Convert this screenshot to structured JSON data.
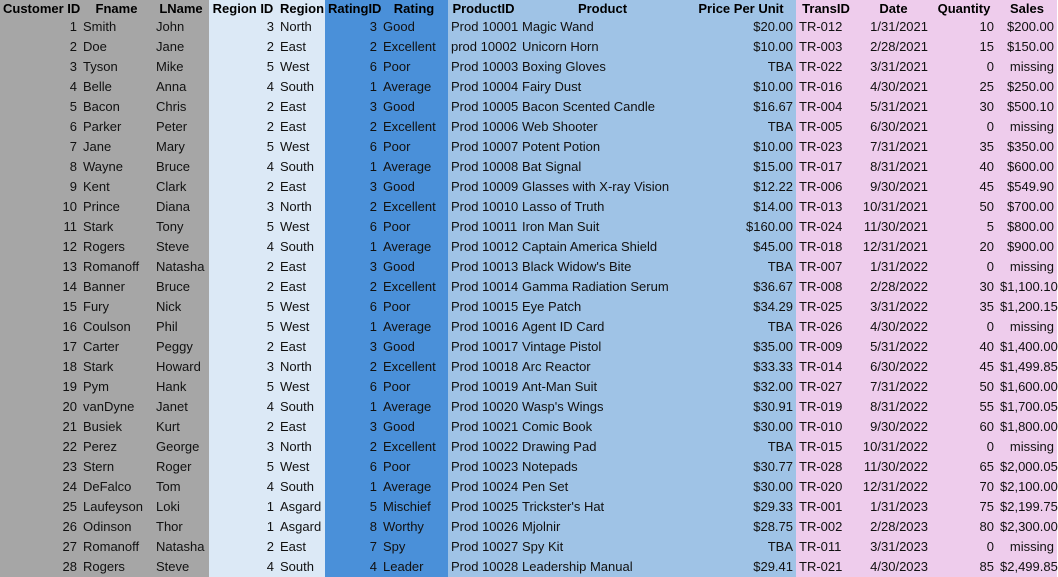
{
  "columns": [
    "Customer ID",
    "Fname",
    "LName",
    "Region ID",
    "Region",
    "RatingID",
    "Rating",
    "ProductID",
    "Product",
    "Price Per Unit",
    "TransID",
    "Date",
    "Quantity",
    "Sales"
  ],
  "rows": [
    [
      "1",
      "Smith",
      "John",
      "3",
      "North",
      "3",
      "Good",
      "Prod 10001",
      "Magic Wand",
      "$20.00",
      "TR-012",
      "1/31/2021",
      "10",
      "$200.00"
    ],
    [
      "2",
      "Doe",
      "Jane",
      "2",
      "East",
      "2",
      "Excellent",
      "prod 10002",
      "Unicorn Horn",
      "$10.00",
      "TR-003",
      "2/28/2021",
      "15",
      "$150.00"
    ],
    [
      "3",
      "Tyson",
      "Mike",
      "5",
      "West",
      "6",
      "Poor",
      "Prod 10003",
      "Boxing Gloves",
      "TBA",
      "TR-022",
      "3/31/2021",
      "0",
      "missing"
    ],
    [
      "4",
      "Belle",
      "Anna",
      "4",
      "South",
      "1",
      "Average",
      "Prod 10004",
      "Fairy Dust",
      "$10.00",
      "TR-016",
      "4/30/2021",
      "25",
      "$250.00"
    ],
    [
      "5",
      "Bacon",
      "Chris",
      "2",
      "East",
      "3",
      "Good",
      "Prod 10005",
      "Bacon Scented Candle",
      "$16.67",
      "TR-004",
      "5/31/2021",
      "30",
      "$500.10"
    ],
    [
      "6",
      "Parker",
      "Peter",
      "2",
      "East",
      "2",
      "Excellent",
      "Prod 10006",
      "Web Shooter",
      "TBA",
      "TR-005",
      "6/30/2021",
      "0",
      "missing"
    ],
    [
      "7",
      "Jane",
      "Mary",
      "5",
      "West",
      "6",
      "Poor",
      "Prod 10007",
      "Potent Potion",
      "$10.00",
      "TR-023",
      "7/31/2021",
      "35",
      "$350.00"
    ],
    [
      "8",
      "Wayne",
      "Bruce",
      "4",
      "South",
      "1",
      "Average",
      "Prod 10008",
      "Bat Signal",
      "$15.00",
      "TR-017",
      "8/31/2021",
      "40",
      "$600.00"
    ],
    [
      "9",
      "Kent",
      "Clark",
      "2",
      "East",
      "3",
      "Good",
      "Prod 10009",
      "Glasses with X-ray Vision",
      "$12.22",
      "TR-006",
      "9/30/2021",
      "45",
      "$549.90"
    ],
    [
      "10",
      "Prince",
      "Diana",
      "3",
      "North",
      "2",
      "Excellent",
      "Prod 10010",
      "Lasso of Truth",
      "$14.00",
      "TR-013",
      "10/31/2021",
      "50",
      "$700.00"
    ],
    [
      "11",
      "Stark",
      "Tony",
      "5",
      "West",
      "6",
      "Poor",
      "Prod 10011",
      "Iron Man Suit",
      "$160.00",
      "TR-024",
      "11/30/2021",
      "5",
      "$800.00"
    ],
    [
      "12",
      "Rogers",
      "Steve",
      "4",
      "South",
      "1",
      "Average",
      "Prod 10012",
      "Captain America Shield",
      "$45.00",
      "TR-018",
      "12/31/2021",
      "20",
      "$900.00"
    ],
    [
      "13",
      "Romanoff",
      "Natasha",
      "2",
      "East",
      "3",
      "Good",
      "Prod 10013",
      "Black Widow's Bite",
      "TBA",
      "TR-007",
      "1/31/2022",
      "0",
      "missing"
    ],
    [
      "14",
      "Banner",
      "Bruce",
      "2",
      "East",
      "2",
      "Excellent",
      "Prod 10014",
      "Gamma Radiation Serum",
      "$36.67",
      "TR-008",
      "2/28/2022",
      "30",
      "$1,100.10"
    ],
    [
      "15",
      "Fury",
      "Nick",
      "5",
      "West",
      "6",
      "Poor",
      "Prod 10015",
      "Eye Patch",
      "$34.29",
      "TR-025",
      "3/31/2022",
      "35",
      "$1,200.15"
    ],
    [
      "16",
      "Coulson",
      "Phil",
      "5",
      "West",
      "1",
      "Average",
      "Prod 10016",
      "Agent ID Card",
      "TBA",
      "TR-026",
      "4/30/2022",
      "0",
      "missing"
    ],
    [
      "17",
      "Carter",
      "Peggy",
      "2",
      "East",
      "3",
      "Good",
      "Prod 10017",
      "Vintage Pistol",
      "$35.00",
      "TR-009",
      "5/31/2022",
      "40",
      "$1,400.00"
    ],
    [
      "18",
      "Stark",
      "Howard",
      "3",
      "North",
      "2",
      "Excellent",
      "Prod 10018",
      "Arc Reactor",
      "$33.33",
      "TR-014",
      "6/30/2022",
      "45",
      "$1,499.85"
    ],
    [
      "19",
      "Pym",
      "Hank",
      "5",
      "West",
      "6",
      "Poor",
      "Prod 10019",
      "Ant-Man Suit",
      "$32.00",
      "TR-027",
      "7/31/2022",
      "50",
      "$1,600.00"
    ],
    [
      "20",
      "vanDyne",
      "Janet",
      "4",
      "South",
      "1",
      "Average",
      "Prod 10020",
      "Wasp's Wings",
      "$30.91",
      "TR-019",
      "8/31/2022",
      "55",
      "$1,700.05"
    ],
    [
      "21",
      "Busiek",
      "Kurt",
      "2",
      "East",
      "3",
      "Good",
      "Prod 10021",
      "Comic Book",
      "$30.00",
      "TR-010",
      "9/30/2022",
      "60",
      "$1,800.00"
    ],
    [
      "22",
      "Perez",
      "George",
      "3",
      "North",
      "2",
      "Excellent",
      "Prod 10022",
      "Drawing Pad",
      "TBA",
      "TR-015",
      "10/31/2022",
      "0",
      "missing"
    ],
    [
      "23",
      "Stern",
      "Roger",
      "5",
      "West",
      "6",
      "Poor",
      "Prod 10023",
      "Notepads",
      "$30.77",
      "TR-028",
      "11/30/2022",
      "65",
      "$2,000.05"
    ],
    [
      "24",
      "DeFalco",
      "Tom",
      "4",
      "South",
      "1",
      "Average",
      "Prod 10024",
      "Pen Set",
      "$30.00",
      "TR-020",
      "12/31/2022",
      "70",
      "$2,100.00"
    ],
    [
      "25",
      "Laufeyson",
      "Loki",
      "1",
      "Asgard",
      "5",
      "Mischief",
      "Prod 10025",
      "Trickster's Hat",
      "$29.33",
      "TR-001",
      "1/31/2023",
      "75",
      "$2,199.75"
    ],
    [
      "26",
      "Odinson",
      "Thor",
      "1",
      "Asgard",
      "8",
      "Worthy",
      "Prod 10026",
      "Mjolnir",
      "$28.75",
      "TR-002",
      "2/28/2023",
      "80",
      "$2,300.00"
    ],
    [
      "27",
      "Romanoff",
      "Natasha",
      "2",
      "East",
      "7",
      "Spy",
      "Prod 10027",
      "Spy Kit",
      "TBA",
      "TR-011",
      "3/31/2023",
      "0",
      "missing"
    ],
    [
      "28",
      "Rogers",
      "Steve",
      "4",
      "South",
      "4",
      "Leader",
      "Prod 10028",
      "Leadership Manual",
      "$29.41",
      "TR-021",
      "4/30/2023",
      "85",
      "$2,499.85"
    ]
  ]
}
